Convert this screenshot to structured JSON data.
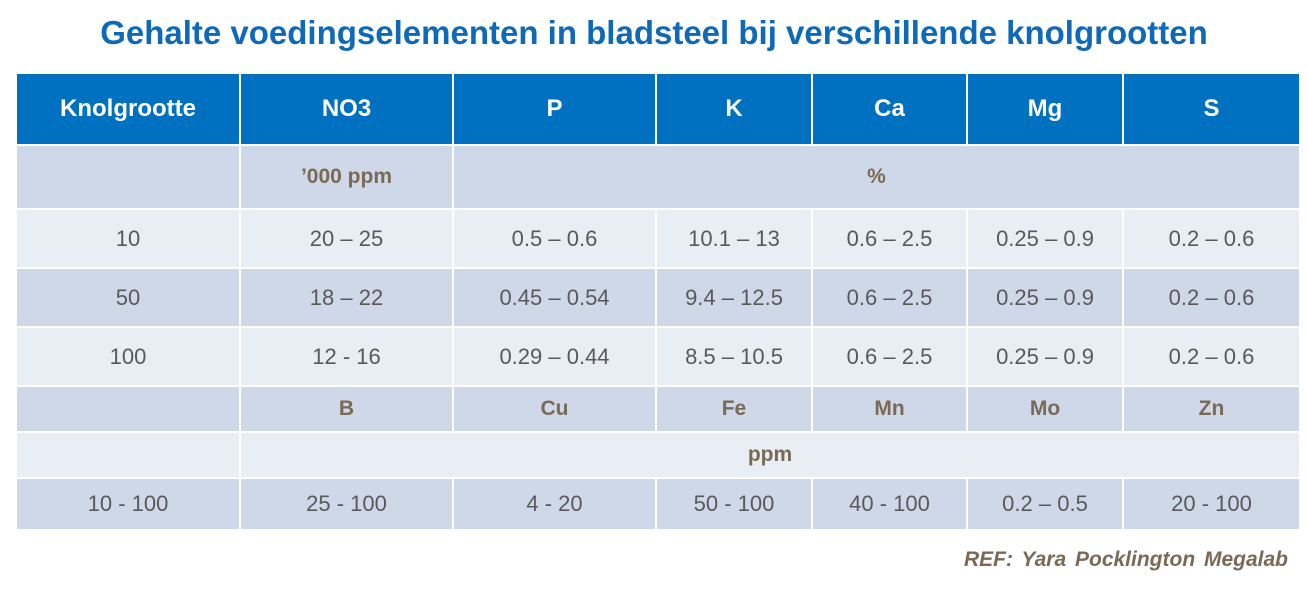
{
  "title": "Gehalte voedingselementen in bladsteel bij verschillende knolgrootten",
  "table": {
    "header": [
      "Knolgrootte",
      "NO3",
      "P",
      "K",
      "Ca",
      "Mg",
      "S"
    ],
    "unit_row": [
      "’000 ppm",
      "%"
    ],
    "rows": [
      [
        "10",
        "20 – 25",
        "0.5 – 0.6",
        "10.1 – 13",
        "0.6 – 2.5",
        "0.25 – 0.9",
        "0.2 – 0.6"
      ],
      [
        "50",
        "18 – 22",
        "0.45 – 0.54",
        "9.4 – 12.5",
        "0.6 – 2.5",
        "0.25 – 0.9",
        "0.2 – 0.6"
      ],
      [
        "100",
        "12 - 16",
        "0.29 – 0.44",
        "8.5 – 10.5",
        "0.6 – 2.5",
        "0.25 – 0.9",
        "0.2 – 0.6"
      ]
    ],
    "micro_header": [
      "B",
      "Cu",
      "Fe",
      "Mn",
      "Mo",
      "Zn"
    ],
    "micro_unit": "ppm",
    "micro_rows": [
      [
        "10 - 100",
        "25 - 100",
        "4 - 20",
        "50 - 100",
        "40 - 100",
        "0.2 – 0.5",
        "20 - 100"
      ]
    ]
  },
  "reference": "REF: Yara Pocklington Megalab"
}
